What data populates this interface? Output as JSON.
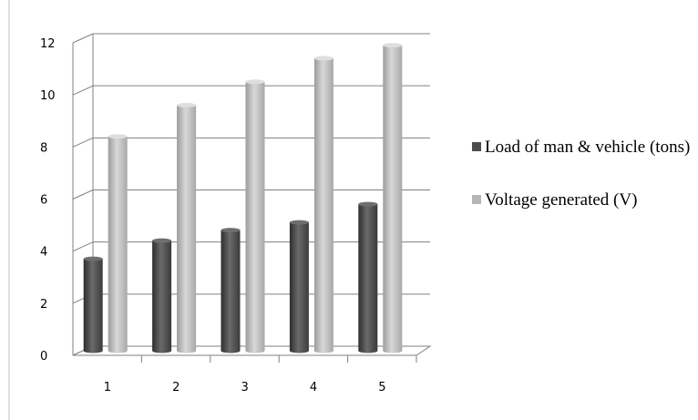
{
  "chart_data": {
    "type": "bar",
    "categories": [
      "1",
      "2",
      "3",
      "4",
      "5"
    ],
    "series": [
      {
        "name": "Load of man & vehicle (tons)",
        "values": [
          3.6,
          4.3,
          4.7,
          5.0,
          5.7
        ],
        "color": "#4d4d4d"
      },
      {
        "name": "Voltage generated (V)",
        "values": [
          8.3,
          9.5,
          10.4,
          11.3,
          11.8
        ],
        "color": "#b5b5b5"
      }
    ],
    "yticks": [
      "0",
      "2",
      "4",
      "6",
      "8",
      "10",
      "12"
    ],
    "ylim": [
      0,
      12
    ],
    "grid": true,
    "legend_position": "right"
  }
}
